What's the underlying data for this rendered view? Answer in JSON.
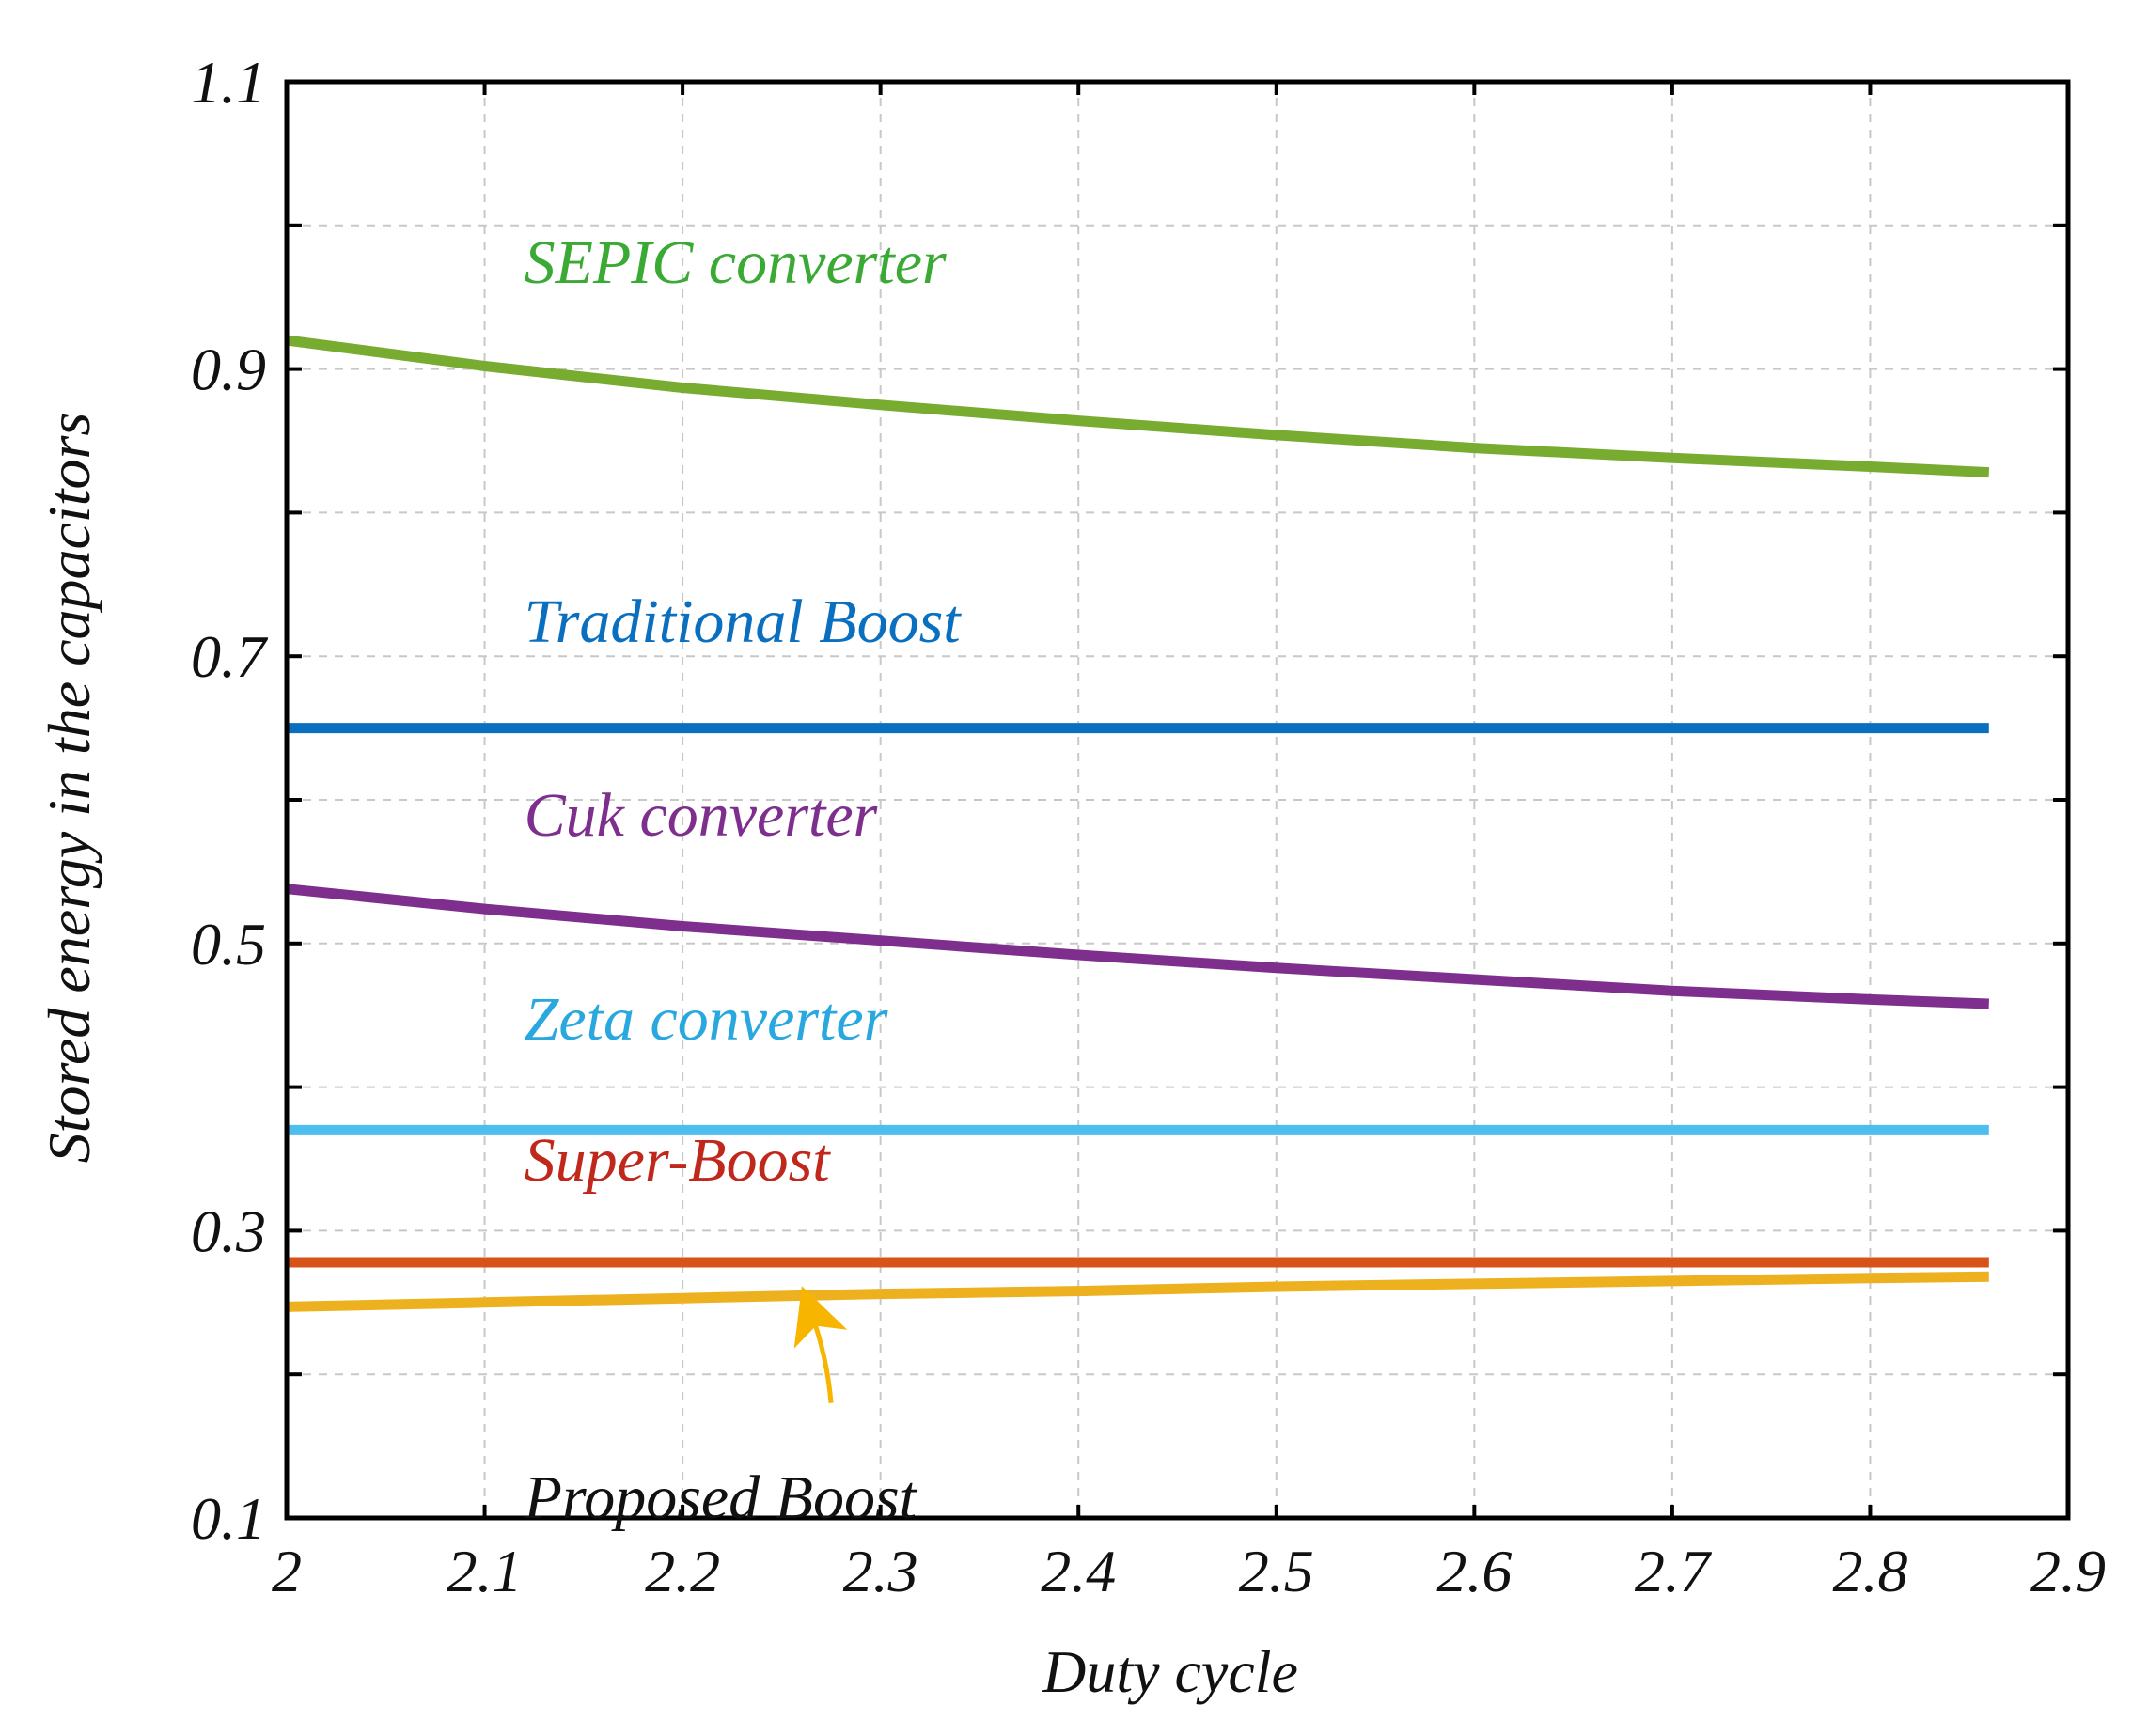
{
  "chart_data": {
    "type": "line",
    "title": "",
    "xlabel": "Duty cycle",
    "ylabel": "Stored energy in the capacitors",
    "xlim": [
      2,
      2.9
    ],
    "ylim": [
      0.1,
      1.1
    ],
    "xticks": [
      2,
      2.1,
      2.2,
      2.3,
      2.4,
      2.5,
      2.6,
      2.7,
      2.8,
      2.9
    ],
    "xtick_labels": [
      "2",
      "2.1",
      "2.2",
      "2.3",
      "2.4",
      "2.5",
      "2.6",
      "2.7",
      "2.8",
      "2.9"
    ],
    "yticks": [
      0.1,
      0.3,
      0.5,
      0.7,
      0.9,
      1.1
    ],
    "ytick_labels": [
      "0.1",
      "0.3",
      "0.5",
      "0.7",
      "0.9",
      "1.1"
    ],
    "grid": true,
    "x": [
      2.0,
      2.1,
      2.2,
      2.3,
      2.4,
      2.5,
      2.6,
      2.7,
      2.8,
      2.86
    ],
    "series": [
      {
        "name": "SEPIC converter",
        "color": "#77ac30",
        "values": [
          0.92,
          0.902,
          0.887,
          0.875,
          0.864,
          0.854,
          0.845,
          0.838,
          0.832,
          0.828
        ]
      },
      {
        "name": "Traditional Boost",
        "color": "#0b6fbf",
        "values": [
          0.65,
          0.65,
          0.65,
          0.65,
          0.65,
          0.65,
          0.65,
          0.65,
          0.65,
          0.65
        ]
      },
      {
        "name": "Cuk converter",
        "color": "#7e2f8e",
        "values": [
          0.538,
          0.524,
          0.512,
          0.502,
          0.492,
          0.483,
          0.475,
          0.467,
          0.461,
          0.458
        ]
      },
      {
        "name": "Zeta converter",
        "color": "#4dbeee",
        "values": [
          0.37,
          0.37,
          0.37,
          0.37,
          0.37,
          0.37,
          0.37,
          0.37,
          0.37,
          0.37
        ]
      },
      {
        "name": "Super-Boost",
        "color": "#d95319",
        "values": [
          0.278,
          0.278,
          0.278,
          0.278,
          0.278,
          0.278,
          0.278,
          0.278,
          0.278,
          0.278
        ]
      },
      {
        "name": "Proposed Boost",
        "color": "#edb120",
        "values": [
          0.247,
          0.25,
          0.253,
          0.256,
          0.258,
          0.261,
          0.263,
          0.265,
          0.267,
          0.268
        ]
      }
    ],
    "annotations": [
      {
        "text": "SEPIC converter",
        "color": "#3aaa35",
        "x": 2.12,
        "y": 0.96
      },
      {
        "text": "Traditional Boost",
        "color": "#0b6fbf",
        "x": 2.12,
        "y": 0.71
      },
      {
        "text": "Cuk converter",
        "color": "#7e2f8e",
        "x": 2.12,
        "y": 0.575
      },
      {
        "text": "Zeta converter",
        "color": "#29a8e0",
        "x": 2.12,
        "y": 0.433
      },
      {
        "text": "Super-Boost",
        "color": "#c0281c",
        "x": 2.12,
        "y": 0.335
      },
      {
        "text": "Proposed Boost",
        "color": "#111111",
        "x": 2.12,
        "y": 0.1
      },
      {
        "text": "",
        "color": "#f7b500",
        "arrow": true,
        "from": [
          2.275,
          0.18
        ],
        "to": [
          2.265,
          0.243
        ]
      }
    ]
  }
}
